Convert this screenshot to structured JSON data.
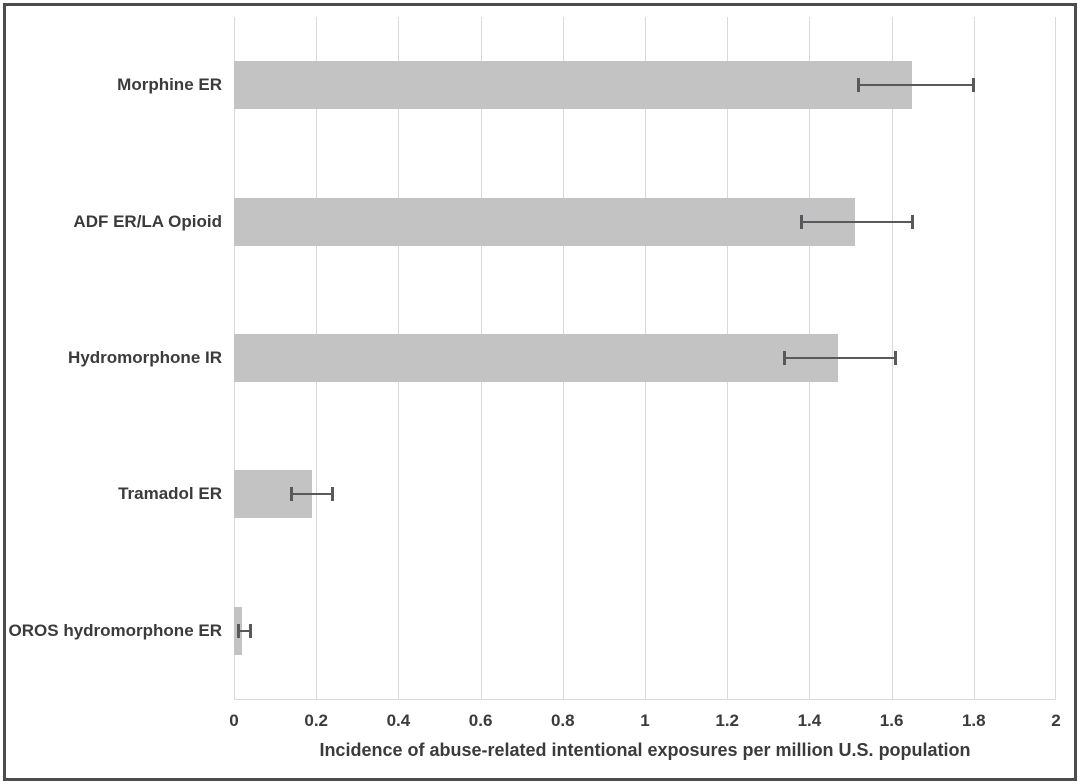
{
  "chart_data": {
    "type": "bar",
    "orientation": "horizontal",
    "title": "",
    "xlabel": "Incidence of abuse-related intentional exposures per million U.S. population",
    "ylabel": "",
    "categories": [
      "Morphine ER",
      "ADF ER/LA Opioid",
      "Hydromorphone IR",
      "Tramadol ER",
      "OROS hydromorphone ER"
    ],
    "values": [
      1.65,
      1.51,
      1.47,
      0.19,
      0.02
    ],
    "error_low": [
      1.52,
      1.38,
      1.34,
      0.14,
      0.01
    ],
    "error_high": [
      1.8,
      1.65,
      1.61,
      0.24,
      0.04
    ],
    "xlim": [
      0,
      2
    ],
    "x_tick_values": [
      0,
      0.2,
      0.4,
      0.6,
      0.8,
      1,
      1.2,
      1.4,
      1.6,
      1.8,
      2
    ],
    "x_ticks": [
      "0",
      "0.2",
      "0.4",
      "0.6",
      "0.8",
      "1",
      "1.2",
      "1.4",
      "1.6",
      "1.8",
      "2"
    ],
    "grid": "vertical-only",
    "legend": "none",
    "colors": {
      "bar": "#c3c3c3",
      "error": "#58595b",
      "gridline": "#d9d9d9",
      "text": "#3b3b3b",
      "frame_border": "#4d4d4d",
      "background": "#ffffff"
    }
  }
}
